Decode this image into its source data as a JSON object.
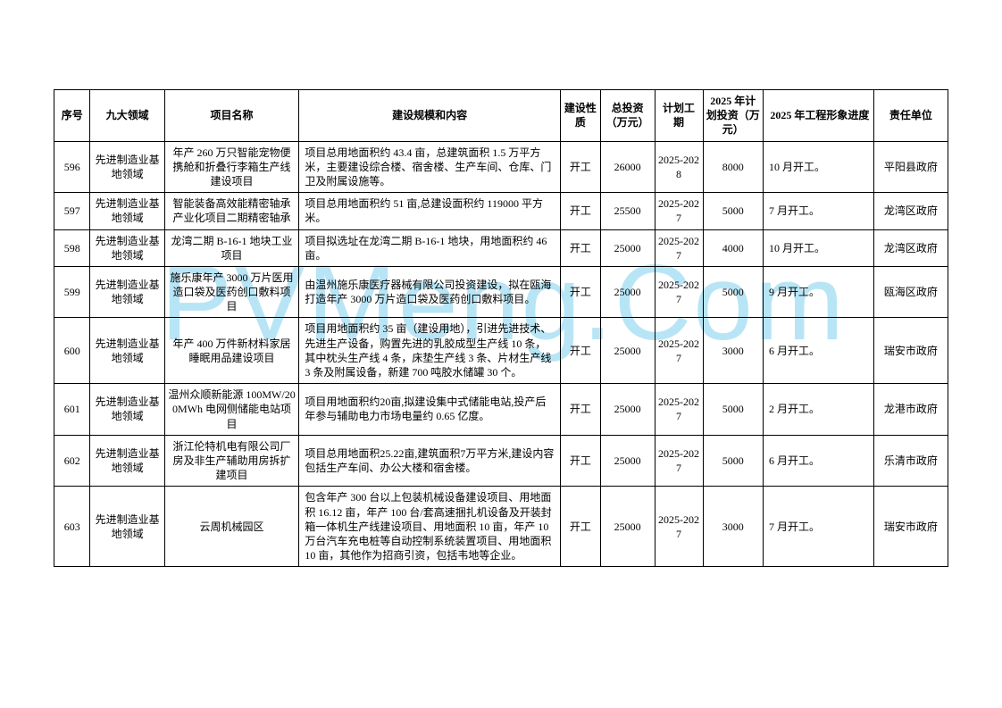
{
  "watermark": "PVMeng.Com",
  "table": {
    "columns": [
      "序号",
      "九大领域",
      "项目名称",
      "建设规模和内容",
      "建设性质",
      "总投资（万元）",
      "计划工期",
      "2025 年计划投资（万元）",
      "2025 年工程形象进度",
      "责任单位"
    ],
    "rows": [
      {
        "seq": "596",
        "domain": "先进制造业基地领域",
        "name": "年产 260 万只智能宠物便携舱和折叠行李箱生产线建设项目",
        "content": "项目总用地面积约 43.4 亩，总建筑面积 1.5 万平方米，主要建设综合楼、宿舍楼、生产车间、仓库、门卫及附属设施等。",
        "nature": "开工",
        "total": "26000",
        "period": "2025-2028",
        "plan": "8000",
        "progress": "10 月开工。",
        "resp": "平阳县政府"
      },
      {
        "seq": "597",
        "domain": "先进制造业基地领域",
        "name": "智能装备高效能精密轴承产业化项目二期精密轴承",
        "content": "项目总用地面积约 51 亩,总建设面积约 119000 平方米。",
        "nature": "开工",
        "total": "25500",
        "period": "2025-2027",
        "plan": "5000",
        "progress": "7 月开工。",
        "resp": "龙湾区政府"
      },
      {
        "seq": "598",
        "domain": "先进制造业基地领域",
        "name": "龙湾二期 B-16-1 地块工业项目",
        "content": "项目拟选址在龙湾二期 B-16-1 地块，用地面积约 46 亩。",
        "nature": "开工",
        "total": "25000",
        "period": "2025-2027",
        "plan": "4000",
        "progress": "10 月开工。",
        "resp": "龙湾区政府"
      },
      {
        "seq": "599",
        "domain": "先进制造业基地领域",
        "name": "施乐康年产 3000 万片医用造口袋及医药创口敷料项目",
        "content": "由温州施乐康医疗器械有限公司投资建设，拟在瓯海打造年产 3000 万片造口袋及医药创口敷料项目。",
        "nature": "开工",
        "total": "25000",
        "period": "2025-2027",
        "plan": "5000",
        "progress": "9 月开工。",
        "resp": "瓯海区政府"
      },
      {
        "seq": "600",
        "domain": "先进制造业基地领域",
        "name": "年产 400 万件新材料家居睡眠用品建设项目",
        "content": "项目用地面积约 35 亩（建设用地），引进先进技术、先进生产设备，购置先进的乳胶成型生产线 10 条，其中枕头生产线 4 条，床垫生产线 3 条、片材生产线 3 条及附属设备，新建 700 吨胶水储罐 30 个。",
        "nature": "开工",
        "total": "25000",
        "period": "2025-2027",
        "plan": "3000",
        "progress": "6 月开工。",
        "resp": "瑞安市政府"
      },
      {
        "seq": "601",
        "domain": "先进制造业基地领域",
        "name": "温州众顺新能源 100MW/200MWh 电网侧储能电站项目",
        "content": "项目用地面积约20亩,拟建设集中式储能电站,投产后年参与辅助电力市场电量约 0.65 亿度。",
        "nature": "开工",
        "total": "25000",
        "period": "2025-2027",
        "plan": "5000",
        "progress": "2 月开工。",
        "resp": "龙港市政府"
      },
      {
        "seq": "602",
        "domain": "先进制造业基地领域",
        "name": "浙江伦特机电有限公司厂房及非生产辅助用房拆扩建项目",
        "content": "项目总用地面积25.22亩,建筑面积7万平方米,建设内容包括生产车间、办公大楼和宿舍楼。",
        "nature": "开工",
        "total": "25000",
        "period": "2025-2027",
        "plan": "5000",
        "progress": "6 月开工。",
        "resp": "乐清市政府"
      },
      {
        "seq": "603",
        "domain": "先进制造业基地领域",
        "name": "云周机械园区",
        "content": "包含年产 300 台以上包装机械设备建设项目、用地面积 16.12 亩，年产 100 台/套高速捆扎机设备及开装封箱一体机生产线建设项目、用地面积 10 亩，年产 10 万台汽车充电桩等自动控制系统装置项目、用地面积 10 亩，其他作为招商引资，包括韦地等企业。",
        "nature": "开工",
        "total": "25000",
        "period": "2025-2027",
        "plan": "3000",
        "progress": "7 月开工。",
        "resp": "瑞安市政府"
      }
    ]
  }
}
